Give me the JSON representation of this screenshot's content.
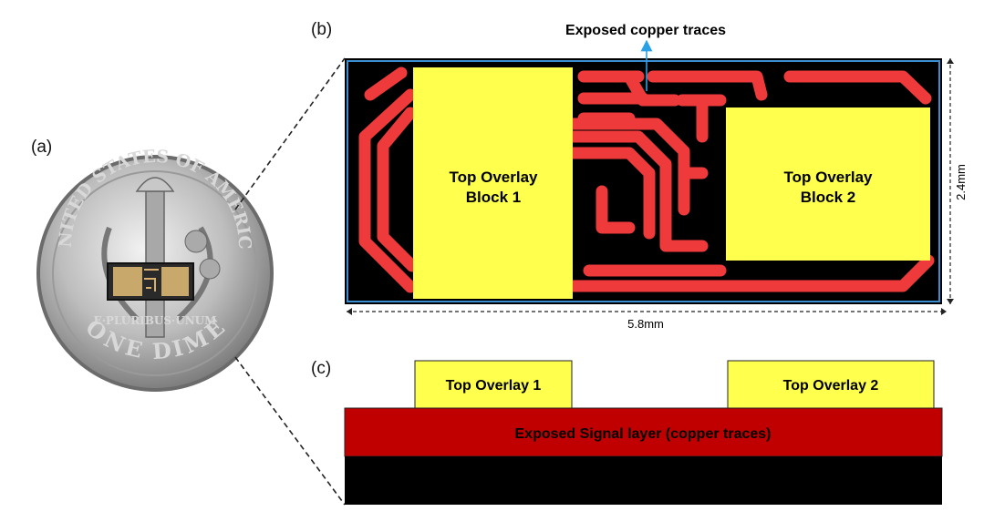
{
  "panels": {
    "a": "(a)",
    "b": "(b)",
    "c": "(c)"
  },
  "top_view": {
    "annotation": "Exposed copper traces",
    "block1_line1": "Top Overlay",
    "block1_line2": "Block 1",
    "block2_line1": "Top Overlay",
    "block2_line2": "Block 2",
    "width_label": "5.8mm",
    "height_label": "2.4mm"
  },
  "cross_section": {
    "overlay1": "Top Overlay 1",
    "overlay2": "Top Overlay 2",
    "signal_layer": "Exposed Signal layer (copper traces)"
  },
  "coin": {
    "top_text": "UNITED STATES OF AMERICA",
    "motto": "E·PLURIBUS·UNUM",
    "bottom_text": "ONE DIME"
  },
  "colors": {
    "board": "#000000",
    "trace": "#ee3a3a",
    "overlay": "#ffff4d",
    "signal_layer": "#c00000",
    "outline": "#3b8fd1",
    "arrow": "#2aa0e6"
  }
}
